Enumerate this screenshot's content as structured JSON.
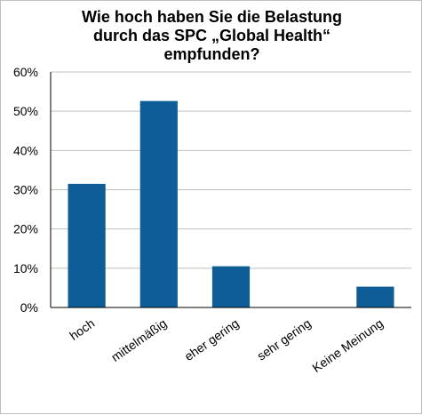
{
  "chart_data": {
    "type": "bar",
    "title_lines": [
      "Wie hoch haben Sie die Belastung",
      "durch das SPC „Global Health“",
      "empfunden?"
    ],
    "categories": [
      "hoch",
      "mittelmäßig",
      "eher gering",
      "sehr gering",
      "Keine Meinung"
    ],
    "values": [
      31.5,
      52.6,
      10.5,
      0,
      5.3
    ],
    "unit": "%",
    "ylim": [
      0,
      60
    ],
    "yticks": [
      0,
      10,
      20,
      30,
      40,
      50,
      60
    ],
    "ytick_labels": [
      "0%",
      "10%",
      "20%",
      "30%",
      "40%",
      "50%",
      "60%"
    ],
    "grid": true,
    "legend": "none",
    "bar_color": "#0e5d96",
    "grid_color": "#c0c0c0",
    "axis_color": "#000000"
  }
}
